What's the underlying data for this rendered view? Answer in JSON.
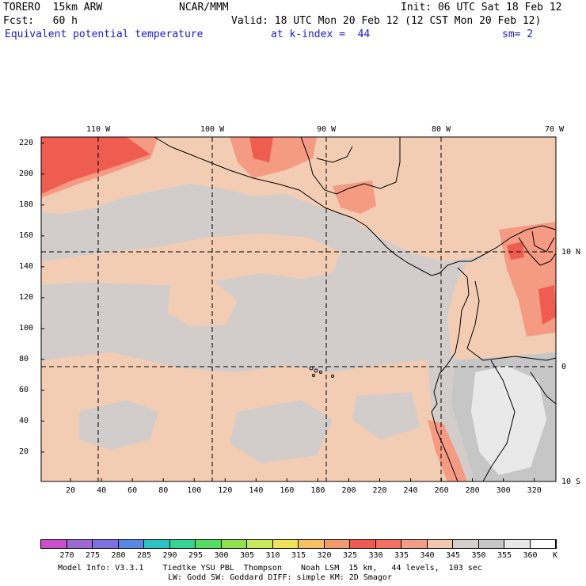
{
  "header": {
    "line1_left": "TORERO  15km ARW",
    "line1_mid": "NCAR/MMM",
    "line1_right": "Init: 06 UTC Sat 18 Feb 12",
    "line2_left": "Fcst:   60 h",
    "line2_right": "Valid: 18 UTC Mon 20 Feb 12 (12 CST Mon 20 Feb 12)",
    "line3_left": "Equivalent potential temperature",
    "line3_mid": "at k-index =  44",
    "line3_right": "sm= 2"
  },
  "map": {
    "top_lon_labels": [
      "110 W",
      "100 W",
      "90 W",
      "80 W",
      "70 W"
    ],
    "right_lat_labels": [
      "10 N",
      "0",
      "10 S"
    ],
    "y_ticks": [
      "220",
      "200",
      "180",
      "160",
      "140",
      "120",
      "100",
      "80",
      "60",
      "40",
      "20"
    ],
    "x_ticks": [
      "20",
      "40",
      "60",
      "80",
      "100",
      "120",
      "140",
      "160",
      "180",
      "200",
      "220",
      "240",
      "260",
      "280",
      "300",
      "320"
    ],
    "y_range": [
      1,
      224
    ],
    "x_range": [
      1,
      334
    ],
    "graticule_lons_deg": [
      -110,
      -100,
      -90,
      -80
    ],
    "graticule_lats_deg": [
      10,
      0
    ],
    "colors": {
      "background_field": "#d2cdcb",
      "warm_field": "#f2cdb4",
      "hot_field": "#f59a83",
      "very_hot_field": "#ee5d4f",
      "cold_field": "#e9e9e9"
    }
  },
  "colorbar": {
    "labels": [
      "270",
      "275",
      "280",
      "285",
      "290",
      "295",
      "300",
      "305",
      "310",
      "315",
      "320",
      "325",
      "330",
      "335",
      "340",
      "345",
      "350",
      "355",
      "360",
      "K"
    ],
    "colors": [
      "#c94fcb",
      "#9d6ad4",
      "#7a72e0",
      "#5a86e4",
      "#2cc4c0",
      "#36d690",
      "#55dc62",
      "#8fe24e",
      "#c6ea5a",
      "#f0e35c",
      "#f6c064",
      "#f39a6a",
      "#ef5b4f",
      "#f47162",
      "#f59c86",
      "#f2c7b0",
      "#d5d0cd",
      "#c6c6c6",
      "#e8e8e8",
      "#ffffff"
    ]
  },
  "footer": {
    "line1": "Model Info: V3.3.1    Tiedtke YSU PBL  Thompson    Noah LSM  15 km,   44 levels,  103 sec",
    "line2": "LW: Godd SW: Goddard DIFF: simple KM: 2D Smagor"
  }
}
